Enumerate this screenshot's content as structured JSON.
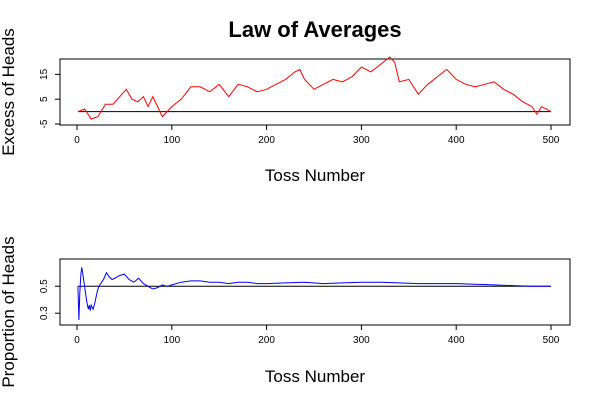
{
  "chart_data": [
    {
      "type": "line",
      "title": "Law of Averages",
      "xlabel": "Toss Number",
      "ylabel": "Excess of Heads",
      "xlim": [
        0,
        500
      ],
      "ylim": [
        -5,
        20
      ],
      "xticks": [
        0,
        100,
        200,
        300,
        400,
        500
      ],
      "yticks": [
        -5,
        5,
        15
      ],
      "reference_line": 0,
      "color": "#ff0000",
      "series": [
        {
          "x": [
            1,
            8,
            15,
            22,
            30,
            38,
            45,
            52,
            58,
            64,
            70,
            75,
            80,
            85,
            90,
            95,
            100,
            110,
            120,
            130,
            140,
            150,
            160,
            170,
            180,
            190,
            200,
            210,
            220,
            230,
            235,
            240,
            250,
            260,
            270,
            280,
            290,
            300,
            310,
            320,
            330,
            335,
            340,
            350,
            360,
            370,
            380,
            390,
            400,
            410,
            420,
            430,
            440,
            450,
            460,
            470,
            480,
            485,
            490,
            495,
            500
          ],
          "y": [
            0,
            1,
            -3,
            -2,
            3,
            3,
            6,
            9,
            5,
            4,
            6,
            2,
            6,
            2,
            -2,
            0,
            2,
            5,
            10,
            10,
            8,
            11,
            6,
            11,
            10,
            8,
            9,
            11,
            13,
            16,
            17,
            13,
            9,
            11,
            13,
            12,
            14,
            18,
            16,
            19,
            22,
            20,
            12,
            13,
            7,
            11,
            14,
            17,
            13,
            11,
            10,
            11,
            12,
            9,
            7,
            4,
            2,
            -1,
            2,
            1,
            0
          ]
        }
      ]
    },
    {
      "type": "line",
      "title": "",
      "xlabel": "Toss Number",
      "ylabel": "Proportion of Heads",
      "xlim": [
        0,
        500
      ],
      "ylim": [
        0.22,
        0.68
      ],
      "xticks": [
        0,
        100,
        200,
        300,
        400,
        500
      ],
      "yticks": [
        0.3,
        0.5
      ],
      "reference_line": 0.5,
      "color": "#0000ff",
      "series": [
        {
          "x": [
            1,
            2,
            3,
            4,
            5,
            6,
            7,
            8,
            9,
            10,
            11,
            12,
            13,
            14,
            15,
            17,
            19,
            21,
            23,
            25,
            28,
            31,
            34,
            37,
            40,
            45,
            50,
            55,
            60,
            65,
            70,
            75,
            80,
            85,
            90,
            95,
            100,
            110,
            120,
            130,
            140,
            150,
            160,
            170,
            180,
            190,
            200,
            220,
            240,
            260,
            280,
            300,
            320,
            340,
            360,
            380,
            400,
            420,
            440,
            460,
            480,
            500
          ],
          "y": [
            0.5,
            0.25,
            0.45,
            0.58,
            0.64,
            0.6,
            0.55,
            0.5,
            0.45,
            0.4,
            0.36,
            0.33,
            0.36,
            0.32,
            0.36,
            0.33,
            0.38,
            0.45,
            0.5,
            0.52,
            0.55,
            0.6,
            0.57,
            0.55,
            0.56,
            0.58,
            0.59,
            0.55,
            0.53,
            0.56,
            0.52,
            0.5,
            0.48,
            0.49,
            0.51,
            0.5,
            0.51,
            0.53,
            0.54,
            0.54,
            0.53,
            0.53,
            0.52,
            0.53,
            0.53,
            0.52,
            0.52,
            0.525,
            0.53,
            0.52,
            0.525,
            0.53,
            0.53,
            0.525,
            0.52,
            0.52,
            0.52,
            0.515,
            0.51,
            0.505,
            0.5,
            0.5
          ]
        }
      ]
    }
  ]
}
